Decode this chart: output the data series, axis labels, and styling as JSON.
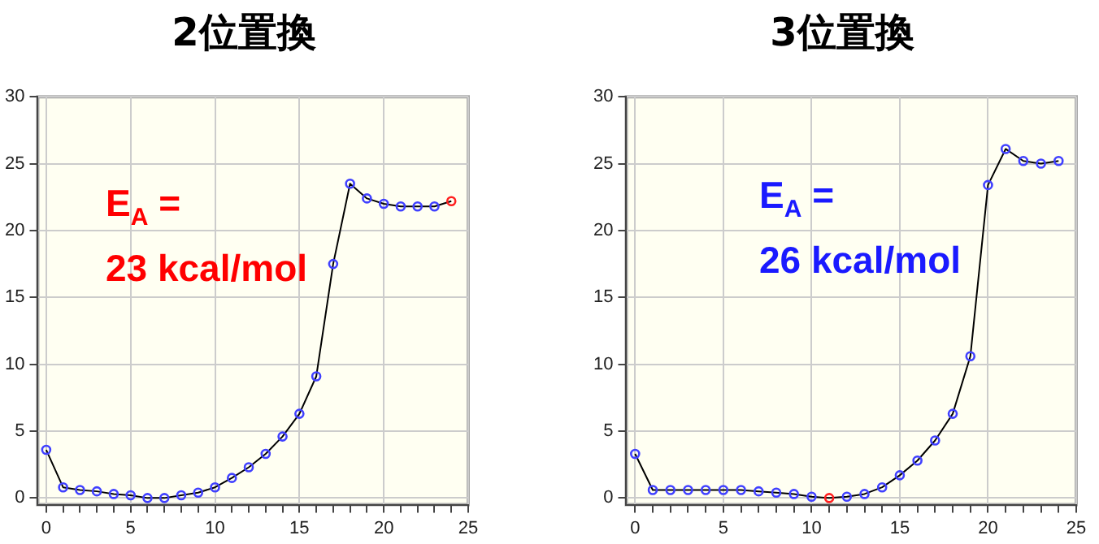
{
  "chart_data": [
    {
      "type": "line",
      "title": "2位置換",
      "annotations": [
        "E$_{A}$ =\n23 kcal/mol"
      ],
      "grid": true,
      "marker": "circle",
      "line_style": "solid",
      "x": [
        0,
        1,
        2,
        3,
        4,
        5,
        6,
        7,
        8,
        9,
        10,
        11,
        12,
        13,
        14,
        15,
        16,
        17,
        18,
        19,
        20,
        21,
        22,
        23,
        24
      ],
      "series": [
        {
          "colors": [
            "#4040ff",
            "#4040ff",
            "#4040ff",
            "#4040ff",
            "#4040ff",
            "#4040ff",
            "#4040ff",
            "#4040ff",
            "#4040ff",
            "#4040ff",
            "#4040ff",
            "#4040ff",
            "#4040ff",
            "#4040ff",
            "#4040ff",
            "#4040ff",
            "#4040ff",
            "#4040ff",
            "#4040ff",
            "#4040ff",
            "#4040ff",
            "#4040ff",
            "#4040ff",
            "#4040ff",
            "#ff2020"
          ],
          "values": [
            3.6,
            0.8,
            0.6,
            0.5,
            0.3,
            0.2,
            0,
            0,
            0.2,
            0.4,
            0.8,
            1.5,
            2.3,
            3.3,
            4.6,
            6.3,
            9.1,
            17.5,
            23.5,
            22.4,
            22,
            21.8,
            21.8,
            21.8,
            22.2
          ]
        }
      ],
      "xlim": [
        -0.5,
        25
      ],
      "xticks": [
        0,
        {
          "value": 1,
          "label": null
        },
        {
          "value": 2,
          "label": null
        },
        {
          "value": 3,
          "label": null
        },
        {
          "value": 4,
          "label": null
        },
        5,
        {
          "value": 6,
          "label": null
        },
        {
          "value": 7,
          "label": null
        },
        {
          "value": 8,
          "label": null
        },
        {
          "value": 9,
          "label": null
        },
        10,
        {
          "value": 11,
          "label": null
        },
        {
          "value": 12,
          "label": null
        },
        {
          "value": 13,
          "label": null
        },
        {
          "value": 14,
          "label": null
        },
        15,
        {
          "value": 16,
          "label": null
        },
        {
          "value": 17,
          "label": null
        },
        {
          "value": 18,
          "label": null
        },
        {
          "value": 19,
          "label": null
        },
        20,
        {
          "value": 21,
          "label": null
        },
        {
          "value": 22,
          "label": null
        },
        {
          "value": 23,
          "label": null
        },
        {
          "value": 24,
          "label": null
        },
        25
      ],
      "ylim": [
        -0.5,
        30
      ],
      "yticks": [
        0,
        5,
        10,
        15,
        20,
        25,
        30
      ]
    },
    {
      "type": "line",
      "title": "3位置換",
      "annotations": [
        "E$_{A}$ =\n26 kcal/mol"
      ],
      "grid": true,
      "marker": "circle",
      "line_style": "solid",
      "x": [
        0,
        1,
        2,
        3,
        4,
        5,
        6,
        7,
        8,
        9,
        10,
        11,
        12,
        13,
        14,
        15,
        16,
        17,
        18,
        19,
        20,
        21,
        22,
        23,
        24
      ],
      "series": [
        {
          "colors": [
            "#4040ff",
            "#4040ff",
            "#4040ff",
            "#4040ff",
            "#4040ff",
            "#4040ff",
            "#4040ff",
            "#4040ff",
            "#4040ff",
            "#4040ff",
            "#4040ff",
            "#ff2020",
            "#4040ff",
            "#4040ff",
            "#4040ff",
            "#4040ff",
            "#4040ff",
            "#4040ff",
            "#4040ff",
            "#4040ff",
            "#4040ff",
            "#4040ff",
            "#4040ff",
            "#4040ff",
            "#4040ff"
          ],
          "values": [
            3.3,
            0.6,
            0.6,
            0.6,
            0.6,
            0.6,
            0.6,
            0.5,
            0.4,
            0.3,
            0.1,
            0,
            0.1,
            0.3,
            0.8,
            1.7,
            2.8,
            4.3,
            6.3,
            10.6,
            23.4,
            26.1,
            25.2,
            25,
            25.2
          ]
        }
      ],
      "xlim": [
        -0.5,
        25
      ],
      "xticks": [
        0,
        {
          "value": 1,
          "label": null
        },
        {
          "value": 2,
          "label": null
        },
        {
          "value": 3,
          "label": null
        },
        {
          "value": 4,
          "label": null
        },
        5,
        {
          "value": 6,
          "label": null
        },
        {
          "value": 7,
          "label": null
        },
        {
          "value": 8,
          "label": null
        },
        {
          "value": 9,
          "label": null
        },
        10,
        {
          "value": 11,
          "label": null
        },
        {
          "value": 12,
          "label": null
        },
        {
          "value": 13,
          "label": null
        },
        {
          "value": 14,
          "label": null
        },
        15,
        {
          "value": 16,
          "label": null
        },
        {
          "value": 17,
          "label": null
        },
        {
          "value": 18,
          "label": null
        },
        {
          "value": 19,
          "label": null
        },
        20,
        {
          "value": 21,
          "label": null
        },
        {
          "value": 22,
          "label": null
        },
        {
          "value": 23,
          "label": null
        },
        {
          "value": 24,
          "label": null
        },
        25
      ],
      "ylim": [
        -0.5,
        30
      ],
      "yticks": [
        0,
        5,
        10,
        15,
        20,
        25,
        30
      ]
    }
  ]
}
